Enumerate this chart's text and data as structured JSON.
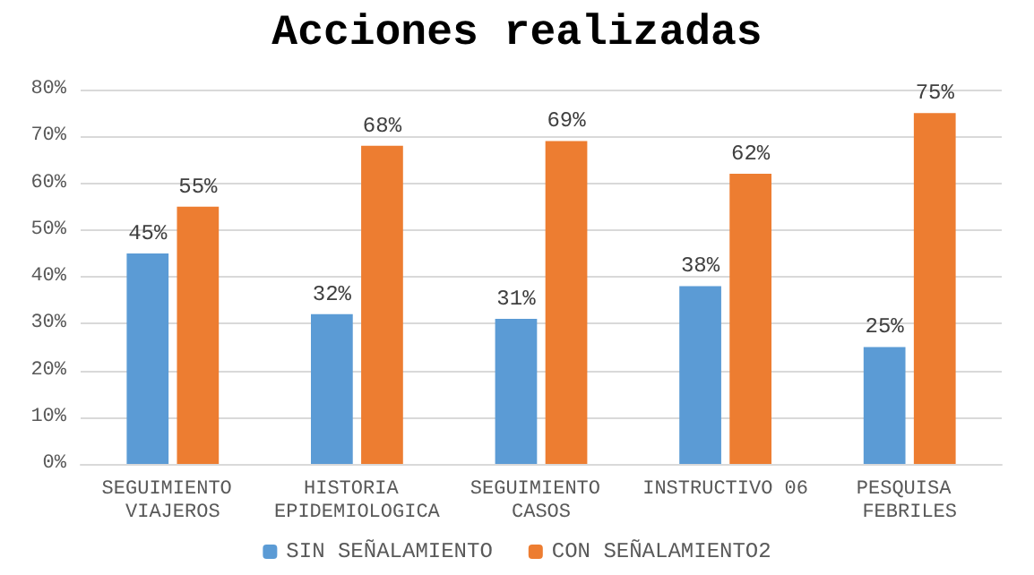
{
  "chart_data": {
    "type": "bar",
    "title": "Acciones realizadas",
    "categories": [
      "SEGUIMIENTO VIAJEROS",
      "HISTORIA EPIDEMIOLOGICA",
      "SEGUIMIENTO CASOS",
      "INSTRUCTIVO 06",
      "PESQUISA FEBRILES"
    ],
    "series": [
      {
        "name": "SIN SEÑALAMIENTO",
        "color": "#5b9bd5",
        "values": [
          45,
          32,
          31,
          38,
          25
        ],
        "value_labels": [
          "45%",
          "32%",
          "31%",
          "38%",
          "25%"
        ]
      },
      {
        "name": "CON SEÑALAMIENTO2",
        "color": "#ed7d31",
        "values": [
          55,
          68,
          69,
          62,
          75
        ],
        "value_labels": [
          "55%",
          "68%",
          "69%",
          "62%",
          "75%"
        ]
      }
    ],
    "ylim": [
      0,
      80
    ],
    "yticks": [
      {
        "value": 0,
        "label": "0%"
      },
      {
        "value": 10,
        "label": "10%"
      },
      {
        "value": 20,
        "label": "20%"
      },
      {
        "value": 30,
        "label": "30%"
      },
      {
        "value": 40,
        "label": "40%"
      },
      {
        "value": 50,
        "label": "50%"
      },
      {
        "value": 60,
        "label": "60%"
      },
      {
        "value": 70,
        "label": "70%"
      },
      {
        "value": 80,
        "label": "80%"
      }
    ],
    "grid": "y",
    "legend": "bottom"
  }
}
